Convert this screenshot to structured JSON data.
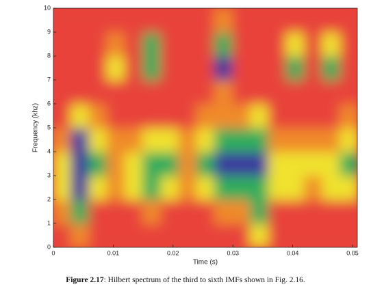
{
  "chart_data": {
    "type": "heatmap",
    "xlabel": "Time (s)",
    "ylabel": "Frequency (khz)",
    "xlim": [
      0,
      0.0508
    ],
    "ylim": [
      0,
      10
    ],
    "xticks": [
      0,
      0.01,
      0.02,
      0.03,
      0.04,
      0.05
    ],
    "yticks": [
      0,
      1,
      2,
      3,
      4,
      5,
      6,
      7,
      8,
      9,
      10
    ],
    "x": [
      0.0015,
      0.0045,
      0.0075,
      0.0105,
      0.0135,
      0.0165,
      0.0195,
      0.0225,
      0.0255,
      0.0285,
      0.0315,
      0.0345,
      0.0375,
      0.0405,
      0.0435,
      0.0465,
      0.0495
    ],
    "y": [
      0.5,
      1.5,
      2.5,
      3.5,
      4.5,
      5.5,
      6.5,
      7.5,
      8.5,
      9.5
    ],
    "z": [
      [
        0,
        1,
        0,
        0,
        0,
        0,
        0,
        0,
        0,
        0,
        0,
        2,
        0,
        0,
        0,
        0,
        0
      ],
      [
        1,
        3,
        0,
        0,
        0,
        1,
        0,
        0,
        0,
        1,
        1,
        3,
        0,
        0,
        0,
        0,
        0
      ],
      [
        2,
        4,
        2,
        1,
        2,
        3,
        2,
        1,
        2,
        3,
        3,
        3,
        2,
        2,
        1,
        2,
        2
      ],
      [
        2,
        4,
        3,
        1,
        2,
        3,
        3,
        1,
        3,
        4,
        4,
        4,
        2,
        2,
        2,
        2,
        3
      ],
      [
        1,
        4,
        2,
        1,
        1,
        2,
        2,
        1,
        2,
        3,
        3,
        3,
        1,
        1,
        1,
        1,
        2
      ],
      [
        0,
        2,
        1,
        0,
        0,
        0,
        0,
        0,
        1,
        1,
        1,
        2,
        0,
        0,
        0,
        0,
        1
      ],
      [
        0,
        0,
        0,
        0,
        0,
        0,
        0,
        0,
        0,
        1,
        0,
        0,
        0,
        0,
        0,
        0,
        0
      ],
      [
        0,
        0,
        0,
        2,
        0,
        3,
        0,
        0,
        0,
        4,
        0,
        0,
        0,
        3,
        0,
        3,
        0
      ],
      [
        0,
        0,
        0,
        1,
        0,
        3,
        0,
        0,
        0,
        3,
        0,
        0,
        0,
        2,
        0,
        2,
        0
      ],
      [
        0,
        0,
        0,
        0,
        0,
        0,
        0,
        0,
        0,
        1,
        0,
        0,
        0,
        0,
        0,
        0,
        0
      ]
    ],
    "zlim": [
      0,
      4
    ],
    "colors": [
      "#e8433a",
      "#f08a2c",
      "#f0e22e",
      "#33ad5c",
      "#3b3a9e"
    ]
  },
  "caption": {
    "label": "Figure 2.17",
    "text": ": Hilbert spectrum of the third to sixth IMFs shown in Fig. 2.16."
  }
}
